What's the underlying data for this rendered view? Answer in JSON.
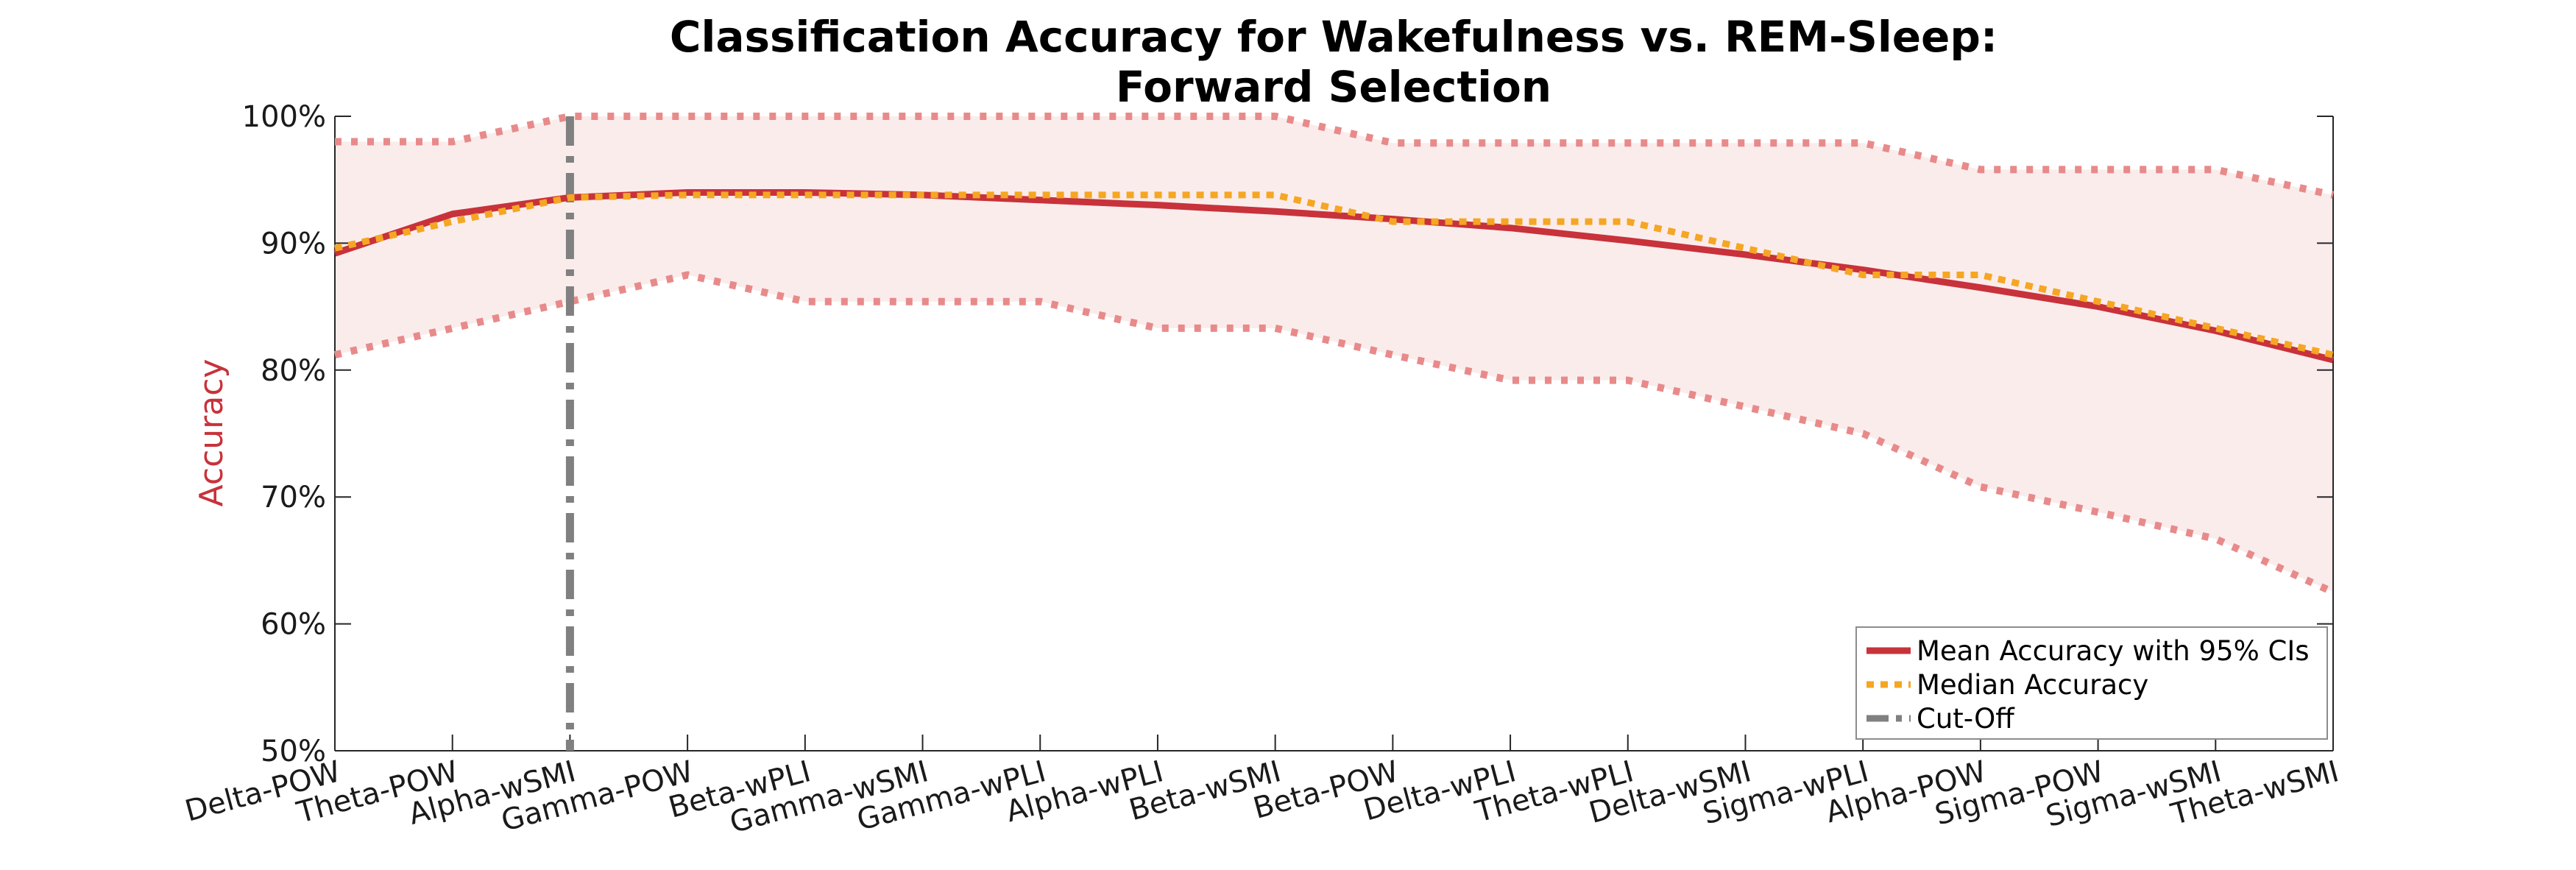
{
  "chart_data": {
    "type": "line",
    "title": [
      "Classification Accuracy for Wakefulness vs. REM-Sleep:",
      "Forward Selection"
    ],
    "ylabel": "Accuracy",
    "xlabel": "",
    "ylim": [
      50,
      100
    ],
    "yticks": [
      "50%",
      "60%",
      "70%",
      "80%",
      "90%",
      "100%"
    ],
    "categories": [
      "Delta-POW",
      "Theta-POW",
      "Alpha-wSMI",
      "Gamma-POW",
      "Beta-wPLI",
      "Gamma-wSMI",
      "Gamma-wPLI",
      "Alpha-wPLI",
      "Beta-wSMI",
      "Beta-POW",
      "Delta-wPLI",
      "Theta-wPLI",
      "Delta-wSMI",
      "Sigma-wPLI",
      "Alpha-POW",
      "Sigma-POW",
      "Sigma-wSMI",
      "Theta-wSMI"
    ],
    "series": [
      {
        "name": "Mean Accuracy with 95% CIs",
        "color": "#c8323a",
        "style": "solid",
        "values": [
          89.2,
          92.3,
          93.6,
          94.0,
          94.0,
          93.8,
          93.4,
          93.0,
          92.5,
          91.9,
          91.2,
          90.2,
          89.1,
          87.9,
          86.5,
          85.0,
          83.1,
          80.8
        ]
      },
      {
        "name": "Median Accuracy",
        "color": "#f5a623",
        "style": "dotted",
        "values": [
          89.6,
          91.7,
          93.6,
          93.8,
          93.8,
          93.8,
          93.8,
          93.8,
          93.8,
          91.7,
          91.7,
          91.7,
          89.6,
          87.5,
          87.5,
          85.4,
          83.3,
          81.2
        ]
      },
      {
        "name": "Cut-Off",
        "color": "#808080",
        "style": "dashdot",
        "x_category": "Alpha-wSMI"
      }
    ],
    "ci_upper": [
      98.0,
      98.0,
      100.0,
      100.0,
      100.0,
      100.0,
      100.0,
      100.0,
      100.0,
      97.9,
      97.9,
      97.9,
      97.9,
      97.9,
      95.8,
      95.8,
      95.8,
      93.8
    ],
    "ci_lower": [
      81.2,
      83.3,
      85.4,
      87.5,
      85.4,
      85.4,
      85.4,
      83.3,
      83.3,
      81.2,
      79.2,
      79.2,
      77.1,
      75.0,
      70.8,
      68.8,
      66.7,
      62.5
    ],
    "ci_color": "#e88a8a",
    "band_fill": "#fbecec",
    "legend_position": "bottom-right",
    "grid": false
  }
}
